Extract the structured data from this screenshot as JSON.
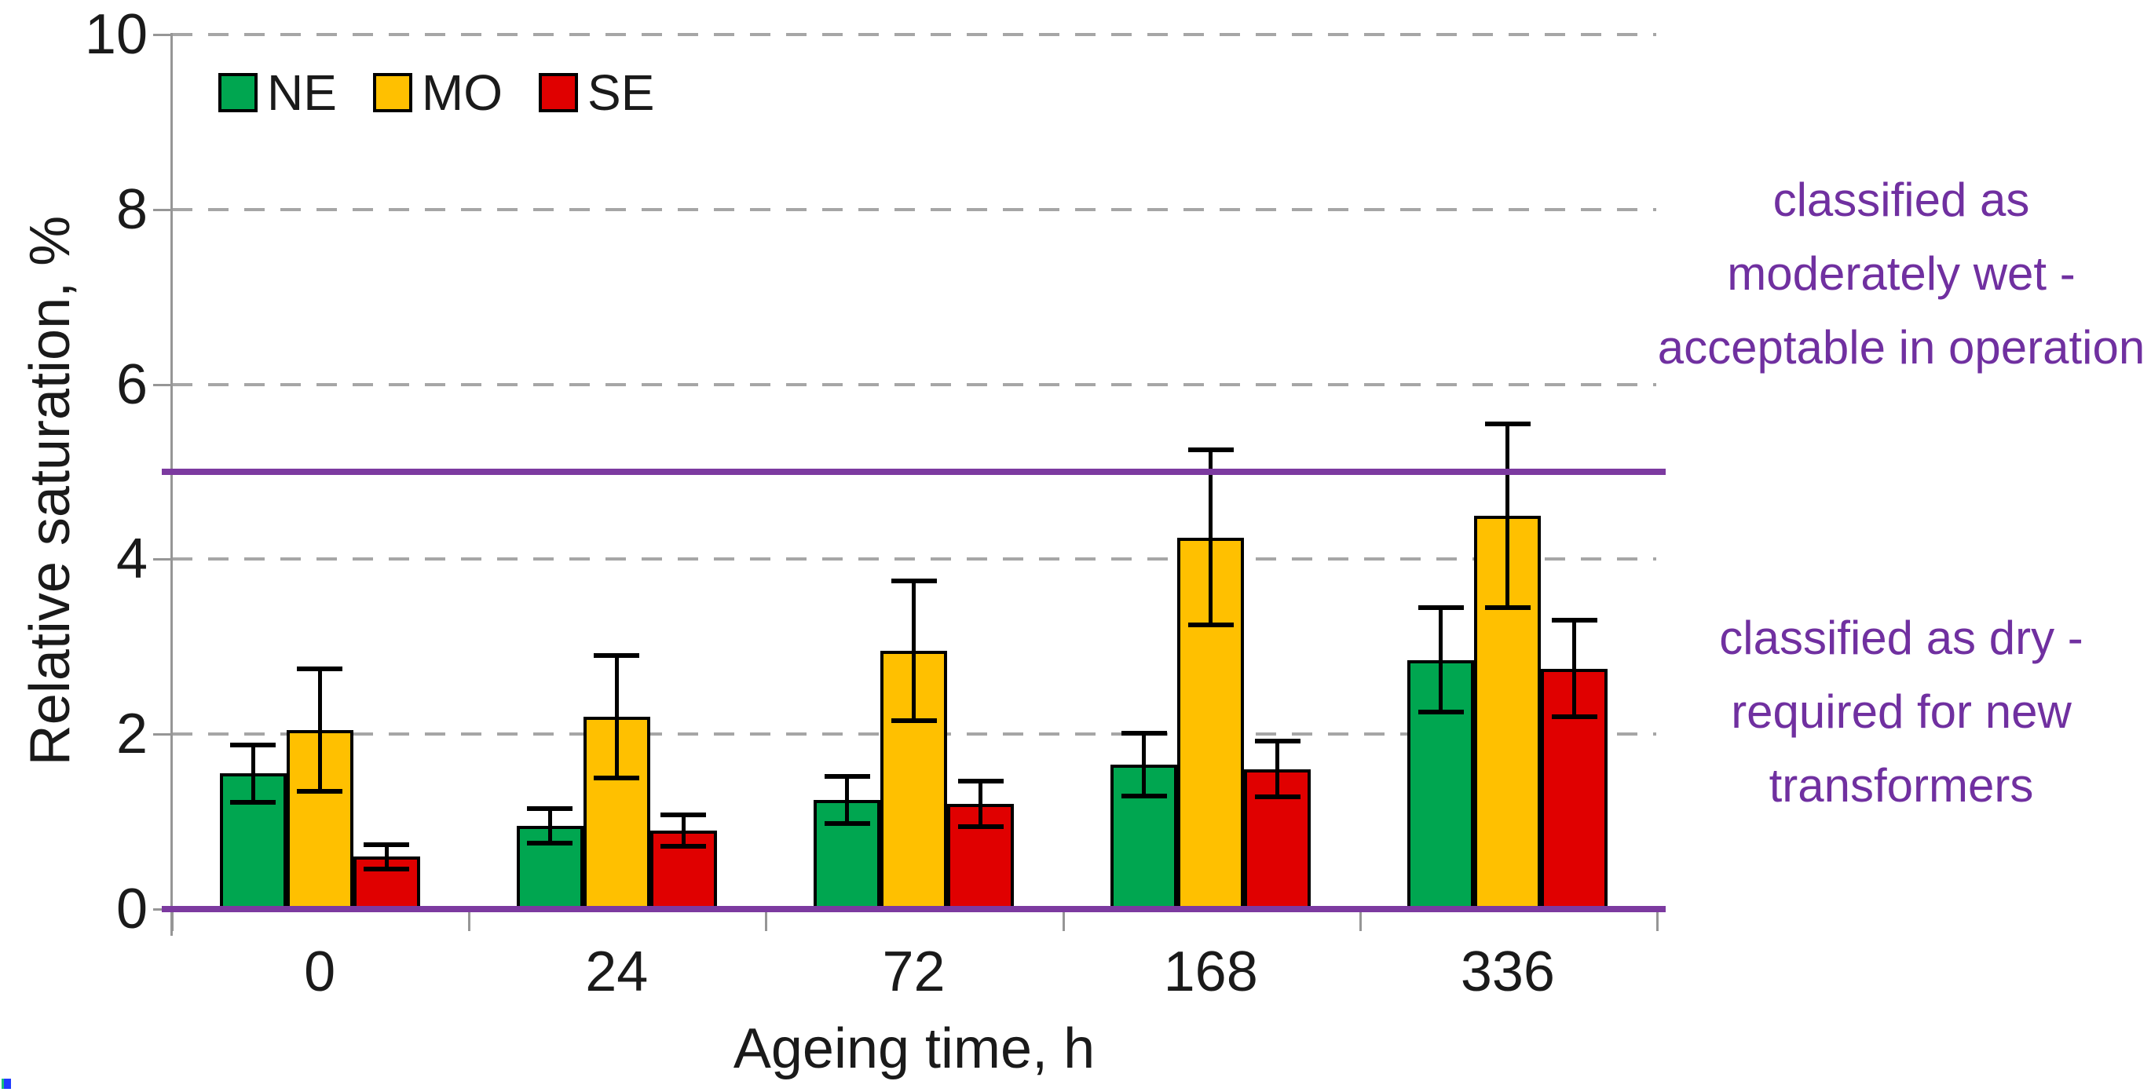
{
  "page": {
    "background": "#FFFFFF"
  },
  "chart_data": {
    "type": "bar",
    "categories": [
      "0",
      "24",
      "72",
      "168",
      "336"
    ],
    "series": [
      {
        "name": "NE",
        "color": "#00A650",
        "values": [
          1.55,
          0.95,
          1.25,
          1.65,
          2.85
        ],
        "errors": [
          0.33,
          0.2,
          0.27,
          0.36,
          0.6
        ]
      },
      {
        "name": "MO",
        "color": "#FFC000",
        "values": [
          2.05,
          2.2,
          2.95,
          4.25,
          4.5
        ],
        "errors": [
          0.7,
          0.7,
          0.8,
          1.0,
          1.05
        ]
      },
      {
        "name": "SE",
        "color": "#E00000",
        "values": [
          0.6,
          0.9,
          1.2,
          1.6,
          2.75
        ],
        "errors": [
          0.14,
          0.18,
          0.26,
          0.32,
          0.55
        ]
      }
    ],
    "xlabel": "Ageing time, h",
    "ylabel": "Relative saturation, %",
    "ylim": [
      0,
      10
    ],
    "yticks": [
      0,
      2,
      4,
      6,
      8,
      10
    ],
    "grid": "horizontal dashed gray lines at yticks 2,4,6,8,10",
    "legend_position": "top-left inside plot",
    "error_bar_color": "#000000",
    "reference_lines": [
      {
        "value": 5,
        "color": "#7C3AA0",
        "style": "solid"
      },
      {
        "value": 0,
        "color": "#7C3AA0",
        "style": "solid baseline"
      }
    ],
    "annotations": [
      {
        "color": "#7030A0",
        "lines": [
          "classified as",
          "moderately wet -",
          "acceptable in operation"
        ],
        "region": "right margin, upper (above 5% line)"
      },
      {
        "color": "#7030A0",
        "lines": [
          "classified as dry -",
          "required for new",
          "transformers"
        ],
        "region": "right margin, lower (below 5% line)"
      }
    ]
  },
  "colors": {
    "gridline": "#A6A6A6",
    "axis": "#969696",
    "text": "#1A1A1A"
  }
}
